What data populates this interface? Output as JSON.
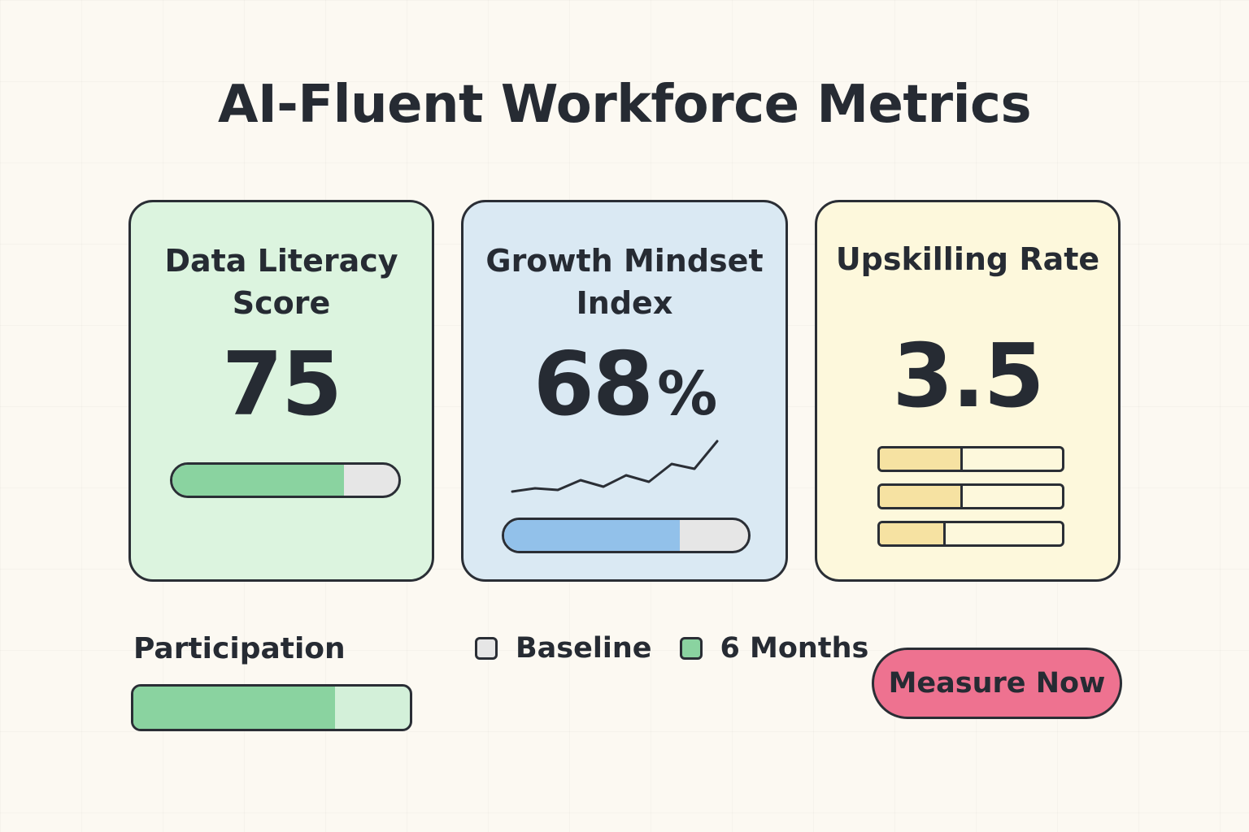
{
  "title": "AI-Fluent Workforce Metrics",
  "cards": [
    {
      "title_line1": "Data Literacy",
      "title_line2": "Score",
      "value": "75",
      "progress": 0.76,
      "color": "#8ad3a0"
    },
    {
      "title_line1": "Growth Mindset",
      "title_line2": "Index",
      "value": "68",
      "unit": "%",
      "progress": 0.72,
      "color": "#92c1ea",
      "trend": [
        2,
        4,
        3,
        9,
        5,
        12,
        8,
        19,
        16,
        33
      ]
    },
    {
      "title_line1": "Upskilling Rate",
      "value": "3.5",
      "bars": [
        0.44,
        0.44,
        0.35
      ],
      "color": "#f6e2a2"
    }
  ],
  "participation": {
    "label": "Participation",
    "segments": [
      0.48,
      0.25
    ],
    "color": "#8ad3a0"
  },
  "legend": [
    {
      "label": "Baseline",
      "color": "#e6e6e6"
    },
    {
      "label": "6 Months",
      "color": "#8ad3a0"
    }
  ],
  "actions": {
    "measure_label": "Measure Now",
    "color": "#ee7290"
  }
}
